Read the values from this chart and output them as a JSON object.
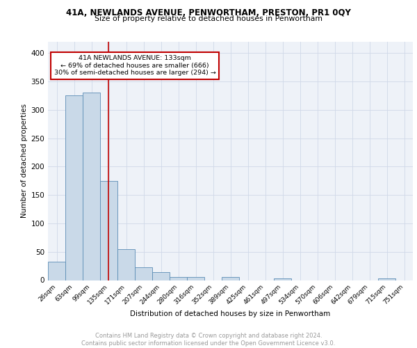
{
  "title1": "41A, NEWLANDS AVENUE, PENWORTHAM, PRESTON, PR1 0QY",
  "title2": "Size of property relative to detached houses in Penwortham",
  "xlabel": "Distribution of detached houses by size in Penwortham",
  "ylabel": "Number of detached properties",
  "bin_labels": [
    "26sqm",
    "63sqm",
    "99sqm",
    "135sqm",
    "171sqm",
    "207sqm",
    "244sqm",
    "280sqm",
    "316sqm",
    "352sqm",
    "389sqm",
    "425sqm",
    "461sqm",
    "497sqm",
    "534sqm",
    "570sqm",
    "606sqm",
    "642sqm",
    "679sqm",
    "715sqm",
    "751sqm"
  ],
  "bar_values": [
    33,
    325,
    330,
    175,
    55,
    23,
    14,
    5,
    5,
    0,
    5,
    0,
    0,
    3,
    0,
    0,
    0,
    0,
    0,
    3,
    0
  ],
  "bar_color": "#c9d9e8",
  "bar_edge_color": "#5a8cb5",
  "grid_color": "#d0d8e8",
  "vline_color": "#c00000",
  "annotation_text": "41A NEWLANDS AVENUE: 133sqm\n← 69% of detached houses are smaller (666)\n30% of semi-detached houses are larger (294) →",
  "annotation_box_color": "white",
  "annotation_box_edge_color": "#c00000",
  "ylim": [
    0,
    420
  ],
  "yticks": [
    0,
    50,
    100,
    150,
    200,
    250,
    300,
    350,
    400
  ],
  "footer_text": "Contains HM Land Registry data © Crown copyright and database right 2024.\nContains public sector information licensed under the Open Government Licence v3.0.",
  "bg_color": "#eef2f8"
}
